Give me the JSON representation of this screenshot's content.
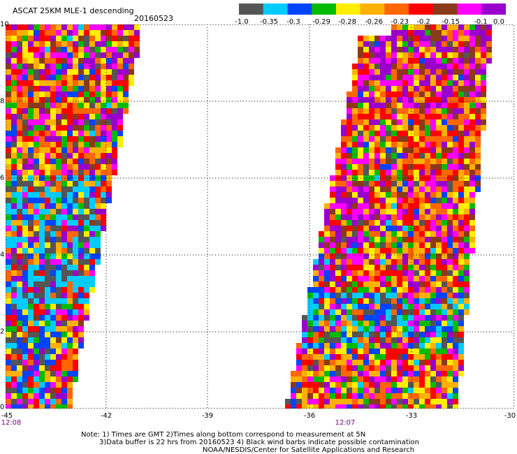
{
  "title": "ASCAT 25KM MLE-1 descending",
  "date": "20160523",
  "legend": {
    "colors": [
      "#555555",
      "#00ccff",
      "#0044ff",
      "#00bb00",
      "#ffee00",
      "#ffb000",
      "#ff6600",
      "#ff0000",
      "#8a3a1a",
      "#ff00ff",
      "#9900cc"
    ],
    "ticks": [
      "-1.0",
      "-0.35",
      "-0.3",
      "-0.29",
      "-0.28",
      "-0.26",
      "-0.23",
      "-0.2",
      "-0.15",
      "-0.1",
      "0.0"
    ]
  },
  "axes": {
    "y_ticks": [
      "10",
      "8",
      "6",
      "4",
      "2",
      "0"
    ],
    "x_ticks": [
      "-45",
      "-42",
      "-39",
      "-36",
      "-33",
      "-30"
    ]
  },
  "times": [
    "12:08",
    "12:07"
  ],
  "notes": [
    "Note: 1) Times are GMT 2)Times along bottom correspond to measurement at 5N",
    "3)Data buffer is 22 hrs from 20160523 4) Black wind barbs indicate possible contamination",
    "NOAA/NESDIS/Center for Satellite Applications and Research"
  ]
}
